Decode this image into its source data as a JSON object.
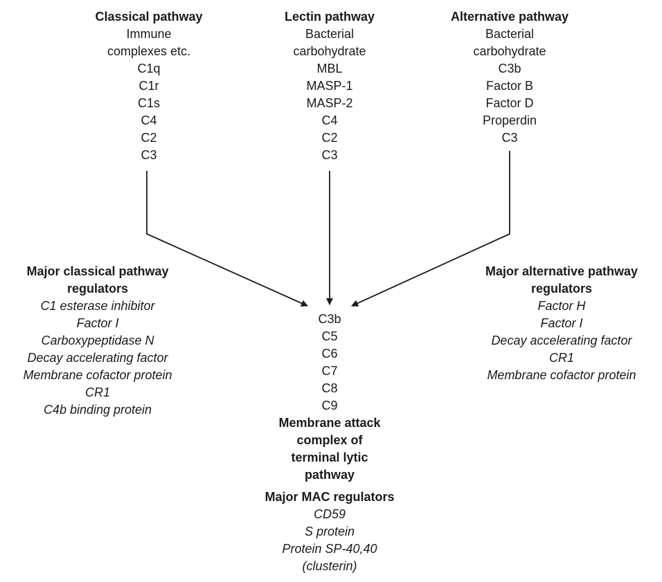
{
  "classical": {
    "title": "Classical pathway",
    "items": [
      "Immune",
      "complexes etc.",
      "C1q",
      "C1r",
      "C1s",
      "C4",
      "C2",
      "C3"
    ]
  },
  "lectin": {
    "title": "Lectin pathway",
    "items": [
      "Bacterial",
      "carbohydrate",
      "MBL",
      "MASP-1",
      "MASP-2",
      "C4",
      "C2",
      "C3"
    ]
  },
  "alternative": {
    "title": "Alternative pathway",
    "items": [
      "Bacterial",
      "carbohydrate",
      "C3b",
      "Factor B",
      "Factor D",
      "Properdin",
      "C3"
    ]
  },
  "classical_regulators": {
    "title_lines": [
      "Major classical pathway",
      "regulators"
    ],
    "items": [
      "C1 esterase inhibitor",
      "Factor I",
      "Carboxypeptidase N",
      "Decay accelerating factor",
      "Membrane cofactor protein",
      "CR1",
      "C4b binding protein"
    ]
  },
  "alternative_regulators": {
    "title_lines": [
      "Major alternative pathway",
      "regulators"
    ],
    "items": [
      "Factor H",
      "Factor I",
      "Decay accelerating factor",
      "CR1",
      "Membrane cofactor protein"
    ]
  },
  "terminal": {
    "items": [
      "C3b",
      "C5",
      "C6",
      "C7",
      "C8",
      "C9"
    ],
    "title_lines": [
      "Membrane attack",
      "complex of",
      "terminal lytic",
      "pathway"
    ]
  },
  "mac_regulators": {
    "title": "Major MAC regulators",
    "items": [
      "CD59",
      "S protein",
      "Protein SP-40,40",
      "(clusterin)"
    ]
  },
  "colors": {
    "text": "#1a1a1a",
    "arrow": "#1a1a1a"
  }
}
